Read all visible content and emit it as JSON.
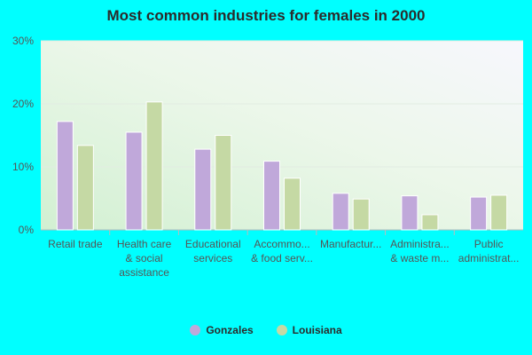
{
  "chart_data": {
    "type": "bar",
    "title": "Most common industries for females in 2000",
    "categories": [
      [
        "Retail trade"
      ],
      [
        "Health care",
        "& social",
        "assistance"
      ],
      [
        "Educational",
        "services"
      ],
      [
        "Accommo...",
        "& food serv..."
      ],
      [
        "Manufactur..."
      ],
      [
        "Administra...",
        "& waste m..."
      ],
      [
        "Public",
        "administrat..."
      ]
    ],
    "series": [
      {
        "name": "Gonzales",
        "color": "#c0a8da",
        "values": [
          17.2,
          15.5,
          12.8,
          10.9,
          5.8,
          5.4,
          5.2
        ]
      },
      {
        "name": "Louisiana",
        "color": "#c5d9a4",
        "values": [
          13.4,
          20.3,
          15.0,
          8.2,
          4.9,
          2.4,
          5.5
        ]
      }
    ],
    "ylim": [
      0,
      30
    ],
    "yticks": [
      0,
      10,
      20,
      30
    ],
    "ytick_labels": [
      "0%",
      "10%",
      "20%",
      "30%"
    ],
    "grid": true,
    "legend_position": "bottom-center"
  }
}
